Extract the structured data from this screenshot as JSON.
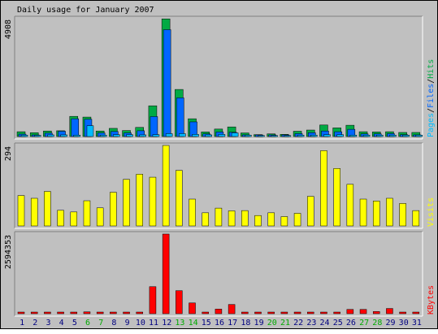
{
  "chart_data": {
    "type": "bar",
    "title": "Daily usage for January 2007",
    "categories": [
      "1",
      "2",
      "3",
      "4",
      "5",
      "6",
      "7",
      "8",
      "9",
      "10",
      "11",
      "12",
      "13",
      "14",
      "15",
      "16",
      "17",
      "18",
      "19",
      "20",
      "21",
      "22",
      "23",
      "24",
      "25",
      "26",
      "27",
      "28",
      "29",
      "30",
      "31"
    ],
    "weekend_categories": [
      "6",
      "7",
      "13",
      "14",
      "20",
      "21",
      "27",
      "28"
    ],
    "colors": {
      "background": "#c0c0c0",
      "hits": "#00aa44",
      "files": "#0066ff",
      "pages": "#00bbff",
      "visits": "#ffff00",
      "kbytes": "#ff0000",
      "title_text": "#000000",
      "weekday_label": "#000080",
      "weekend_label": "#00aa00"
    },
    "panels": [
      {
        "name": "hits-files-pages",
        "ymax_label": "4908",
        "ylim": [
          0,
          4908
        ],
        "legend": [
          "Pages",
          "/",
          "Files",
          "/",
          "Hits"
        ],
        "legend_colors": [
          "#00bbff",
          "#000000",
          "#0066ff",
          "#000000",
          "#00aa44"
        ],
        "series": [
          {
            "name": "Hits",
            "values": [
              200,
              160,
              230,
              240,
              840,
              810,
              230,
              340,
              250,
              380,
              1280,
              4900,
              1960,
              740,
              190,
              310,
              400,
              150,
              80,
              110,
              90,
              220,
              270,
              480,
              360,
              470,
              200,
              190,
              200,
              170,
              170
            ]
          },
          {
            "name": "Files",
            "values": [
              100,
              60,
              140,
              220,
              740,
              720,
              150,
              210,
              150,
              240,
              830,
              4450,
              1610,
              610,
              110,
              190,
              180,
              70,
              40,
              50,
              40,
              120,
              160,
              230,
              200,
              300,
              110,
              110,
              120,
              80,
              70
            ]
          },
          {
            "name": "Pages",
            "values": [
              60,
              50,
              70,
              70,
              60,
              450,
              60,
              80,
              80,
              70,
              80,
              120,
              120,
              90,
              70,
              90,
              150,
              60,
              40,
              40,
              40,
              60,
              60,
              80,
              80,
              60,
              60,
              60,
              60,
              60,
              60
            ]
          }
        ]
      },
      {
        "name": "visits",
        "ymax_label": "294",
        "ylim": [
          0,
          294
        ],
        "legend": [
          "Visits"
        ],
        "legend_colors": [
          "#ffff00"
        ],
        "series": [
          {
            "name": "Visits",
            "values": [
              111,
              101,
              126,
              57,
              51,
              92,
              66,
              123,
              170,
              189,
              178,
              294,
              203,
              98,
              48,
              65,
              55,
              56,
              38,
              48,
              34,
              46,
              108,
              275,
              210,
              152,
              98,
              91,
              101,
              82,
              56
            ]
          }
        ]
      },
      {
        "name": "kbytes",
        "ymax_label": "2594353",
        "ylim": [
          0,
          2594353
        ],
        "legend": [
          "KBytes"
        ],
        "legend_colors": [
          "#ff0000"
        ],
        "series": [
          {
            "name": "KBytes",
            "values": [
              0,
              0,
              0,
              0,
              0,
              60000,
              0,
              0,
              0,
              0,
              880000,
              2594353,
              750000,
              350000,
              0,
              150000,
              300000,
              0,
              0,
              0,
              0,
              0,
              0,
              0,
              0,
              140000,
              140000,
              70000,
              170000,
              0,
              0
            ]
          }
        ]
      }
    ]
  }
}
